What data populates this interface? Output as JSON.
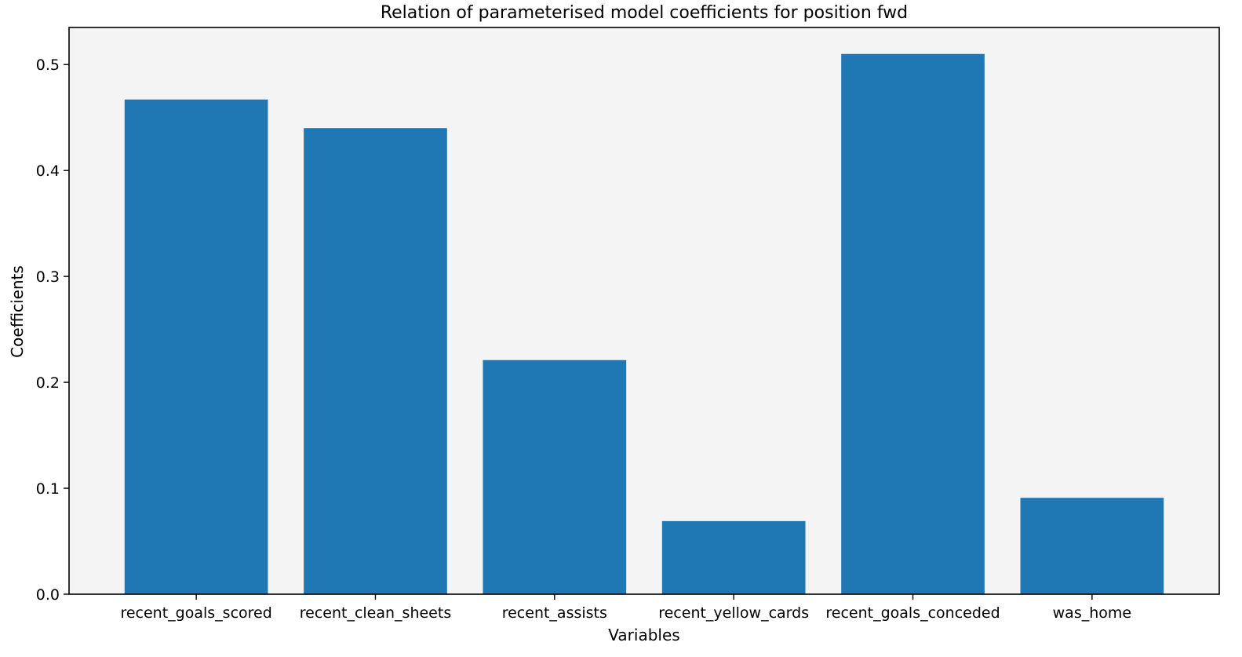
{
  "chart_data": {
    "type": "bar",
    "title": "Relation of parameterised model coefficients for position fwd",
    "xlabel": "Variables",
    "ylabel": "Coefficients",
    "categories": [
      "recent_goals_scored",
      "recent_clean_sheets",
      "recent_assists",
      "recent_yellow_cards",
      "recent_goals_conceded",
      "was_home"
    ],
    "values": [
      0.467,
      0.44,
      0.221,
      0.069,
      0.51,
      0.091
    ],
    "ylim": [
      0,
      0.535
    ],
    "yticks": [
      "0.0",
      "0.1",
      "0.2",
      "0.3",
      "0.4",
      "0.5"
    ],
    "grid": false,
    "bar_color": "#1f77b4",
    "plot_background": "#f4f4f4"
  }
}
